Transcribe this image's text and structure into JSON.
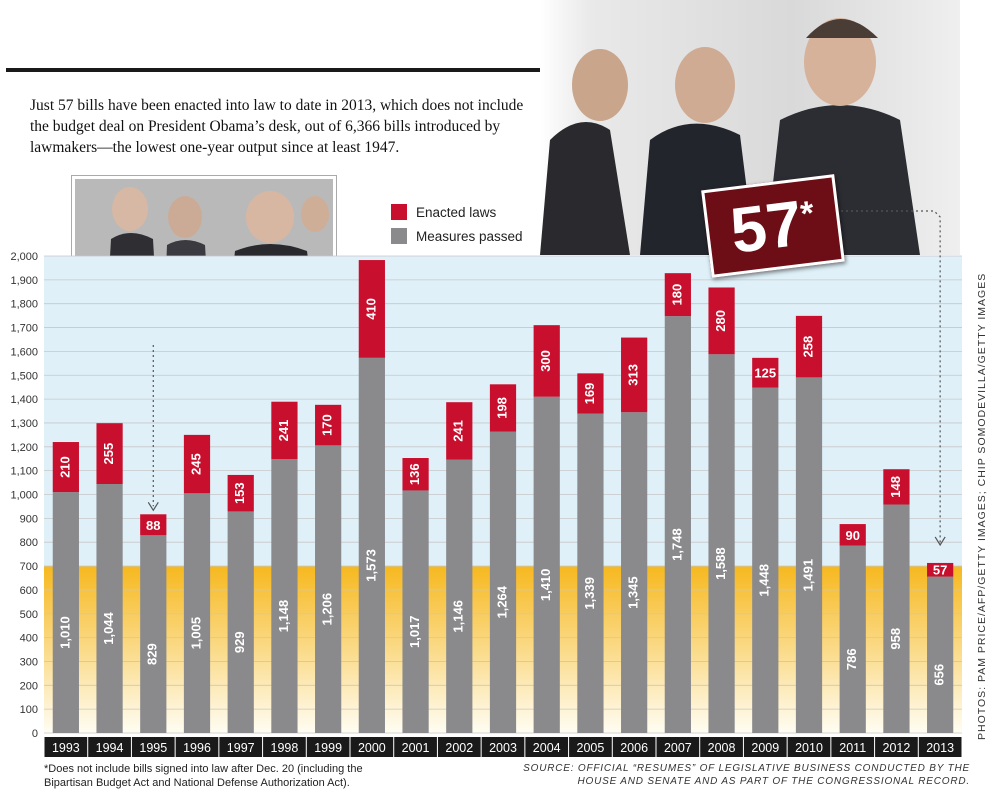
{
  "intro_text": "Just 57 bills have been enacted into law to date in 2013, which does not include the budget deal on President Obama’s desk, out of 6,366 bills introduced by lawmakers—the lowest one-year output since at least 1947.",
  "callout": {
    "value": "57",
    "mark": "*"
  },
  "legend": {
    "enacted": {
      "label": "Enacted laws",
      "color": "#c8102e"
    },
    "passed": {
      "label": "Measures passed",
      "color": "#8a8a8d"
    }
  },
  "photo_credit": "PHOTOS: PAM PRICE/AFP/GETTY IMAGES; CHIP SOMODEVILLA/GETTY IMAGES",
  "footnote": "*Does not include bills signed into law after Dec. 20 (including the Bipartisan Budget Act and National Defense Authorization Act).",
  "source": "SOURCE: OFFICIAL “RESUMES” OF LEGISLATIVE BUSINESS CONDUCTED BY THE HOUSE AND SENATE AND AS PART OF THE CONGRESSIONAL RECORD.",
  "colors": {
    "year_band": "#1a1a1a",
    "sky_band": "#dff0f8",
    "gold_band": "#f6b81f"
  },
  "chart_data": {
    "type": "bar",
    "stacked": true,
    "categories": [
      "1993",
      "1994",
      "1995",
      "1996",
      "1997",
      "1998",
      "1999",
      "2000",
      "2001",
      "2002",
      "2003",
      "2004",
      "2005",
      "2006",
      "2007",
      "2008",
      "2009",
      "2010",
      "2011",
      "2012",
      "2013"
    ],
    "series": [
      {
        "name": "Measures passed",
        "values": [
          1010,
          1044,
          829,
          1005,
          929,
          1148,
          1206,
          1573,
          1017,
          1146,
          1264,
          1410,
          1339,
          1345,
          1748,
          1588,
          1448,
          1491,
          786,
          958,
          656
        ],
        "labels": [
          "1,010",
          "1,044",
          "829",
          "1,005",
          "929",
          "1,148",
          "1,206",
          "1,573",
          "1,017",
          "1,146",
          "1,264",
          "1,410",
          "1,339",
          "1,345",
          "1,748",
          "1,588",
          "1,448",
          "1,491",
          "786",
          "958",
          "656"
        ]
      },
      {
        "name": "Enacted laws",
        "values": [
          210,
          255,
          88,
          245,
          153,
          241,
          170,
          410,
          136,
          241,
          198,
          300,
          169,
          313,
          180,
          280,
          125,
          258,
          90,
          148,
          57
        ],
        "labels": [
          "210",
          "255",
          "88",
          "245",
          "153",
          "241",
          "170",
          "410",
          "136",
          "241",
          "198",
          "300",
          "169",
          "313",
          "180",
          "280",
          "125",
          "258",
          "90",
          "148",
          "57"
        ]
      }
    ],
    "yticks": [
      "0",
      "100",
      "200",
      "300",
      "400",
      "500",
      "600",
      "700",
      "800",
      "900",
      "1,000",
      "1,100",
      "1,200",
      "1,300",
      "1,400",
      "1,500",
      "1,600",
      "1,700",
      "1,800",
      "1,900",
      "2,000"
    ],
    "ylim": [
      0,
      2000
    ],
    "highlight_band": [
      0,
      700
    ],
    "grid": true,
    "legend_position": "top"
  }
}
